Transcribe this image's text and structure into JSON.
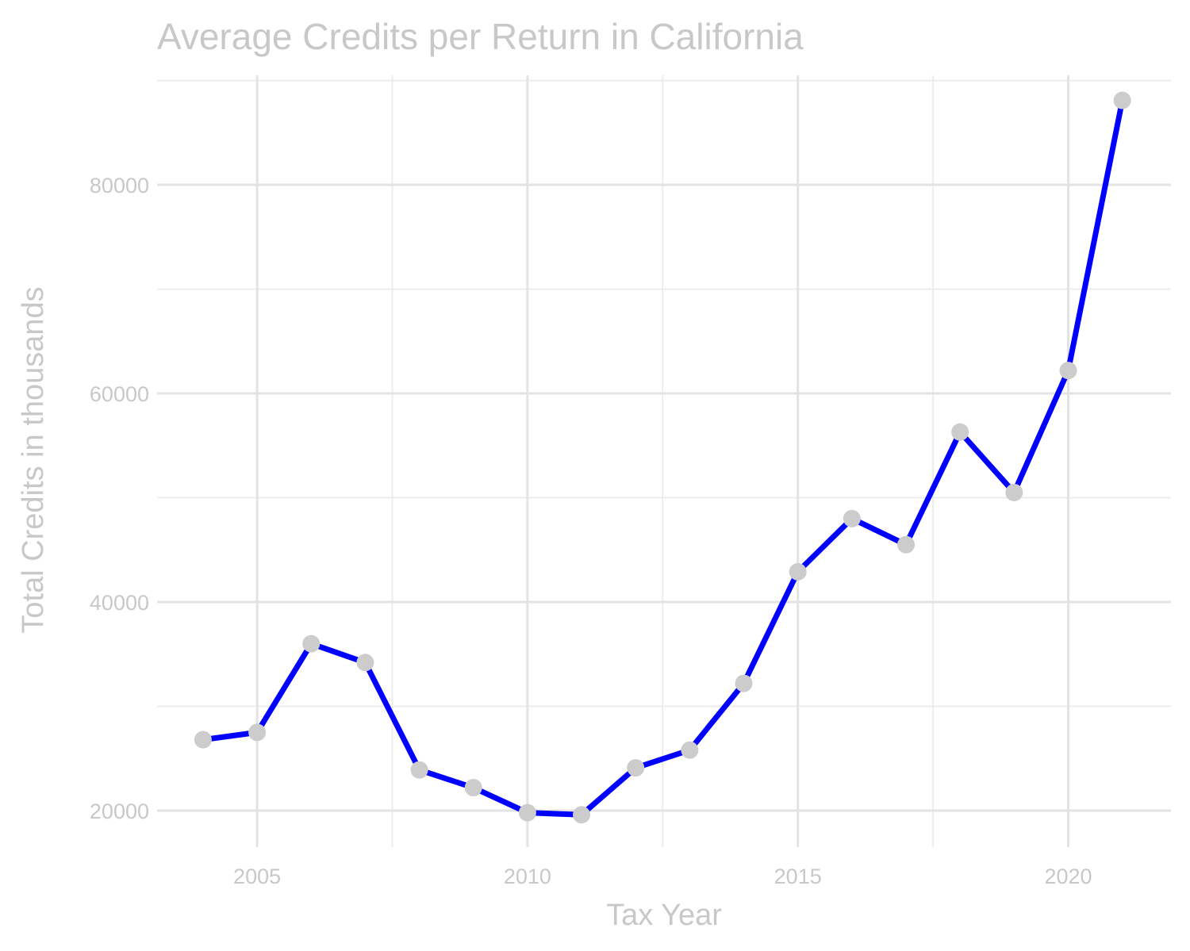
{
  "chart_data": {
    "type": "line",
    "title": "Average Credits per Return in California",
    "xlabel": "Tax Year",
    "ylabel": "Total Credits in thousands",
    "x": [
      2004,
      2005,
      2006,
      2007,
      2008,
      2009,
      2010,
      2011,
      2012,
      2013,
      2014,
      2015,
      2016,
      2017,
      2018,
      2019,
      2020,
      2021
    ],
    "values": [
      26800,
      27500,
      36000,
      34200,
      23900,
      22200,
      19800,
      19600,
      24100,
      25800,
      32200,
      42900,
      48000,
      45500,
      56300,
      50500,
      62200,
      88100
    ],
    "xlim": [
      2003.15,
      2021.9
    ],
    "ylim": [
      16500,
      90500
    ],
    "x_ticks": [
      2005,
      2010,
      2015,
      2020
    ],
    "x_tick_labels": [
      "2005",
      "2010",
      "2015",
      "2020"
    ],
    "y_ticks": [
      20000,
      40000,
      60000,
      80000
    ],
    "y_tick_labels": [
      "20000",
      "40000",
      "60000",
      "80000"
    ],
    "grid": true,
    "legend": "none",
    "colors": {
      "line": "#0000ff",
      "points": "#cccccc",
      "text": "#c8c8c8",
      "grid": "#e3e3e3"
    }
  }
}
